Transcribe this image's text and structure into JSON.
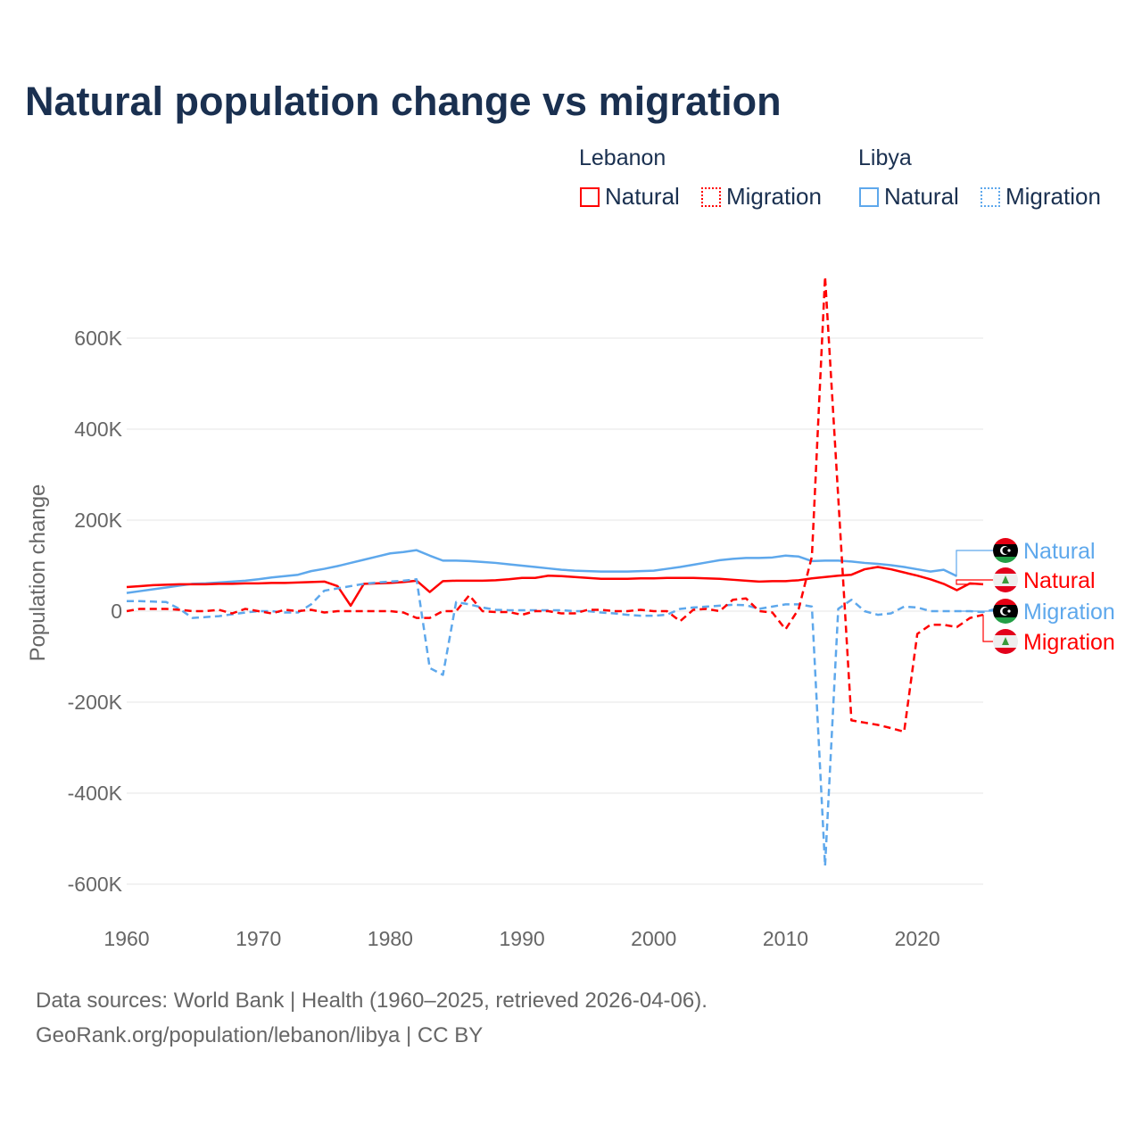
{
  "chart_data": {
    "type": "line",
    "title": "Natural population change vs migration",
    "xlabel": "",
    "ylabel": "Population change",
    "xlim": [
      1960,
      2025
    ],
    "ylim": [
      -650000,
      740000
    ],
    "grid": true,
    "x_ticks": [
      1960,
      1970,
      1980,
      1990,
      2000,
      2010,
      2020
    ],
    "x_tick_labels": [
      "1960",
      "1970",
      "1980",
      "1990",
      "2000",
      "2010",
      "2020"
    ],
    "y_ticks": [
      -600000,
      -400000,
      -200000,
      0,
      200000,
      400000,
      600000
    ],
    "y_tick_labels": [
      "-600K",
      "-400K",
      "-200K",
      "0",
      "200K",
      "400K",
      "600K"
    ],
    "legend": {
      "placement": "top-right",
      "groups": [
        {
          "name": "Lebanon",
          "items": [
            "Natural",
            "Migration"
          ]
        },
        {
          "name": "Libya",
          "items": [
            "Natural",
            "Migration"
          ]
        }
      ]
    },
    "series": [
      {
        "name": "Natural",
        "country": "Libya",
        "style": "solid",
        "color": "#5ea8ec",
        "end_label": "Natural",
        "start_year": 1960,
        "values_k": [
          40,
          44,
          48,
          52,
          56,
          60,
          61,
          63,
          65,
          67,
          70,
          74,
          77,
          80,
          88,
          93,
          99,
          106,
          113,
          120,
          127,
          130,
          134,
          122,
          111,
          111,
          110,
          108,
          106,
          103,
          100,
          97,
          94,
          91,
          89,
          88,
          87,
          87,
          87,
          88,
          89,
          93,
          97,
          102,
          107,
          112,
          115,
          117,
          117,
          118,
          122,
          120,
          110,
          111,
          111,
          109,
          106,
          104,
          101,
          97,
          92,
          87,
          91,
          77
        ]
      },
      {
        "name": "Natural",
        "country": "Lebanon",
        "style": "solid",
        "color": "#ff0000",
        "end_label": "Natural",
        "start_year": 1960,
        "values_k": [
          53,
          55,
          57,
          58,
          59,
          59,
          59,
          60,
          60,
          61,
          61,
          62,
          62,
          63,
          64,
          65,
          55,
          12,
          60,
          61,
          62,
          64,
          67,
          42,
          66,
          67,
          67,
          67,
          68,
          70,
          73,
          73,
          78,
          77,
          75,
          73,
          71,
          71,
          71,
          72,
          72,
          73,
          73,
          73,
          72,
          71,
          69,
          67,
          65,
          66,
          66,
          68,
          72,
          75,
          78,
          80,
          92,
          97,
          92,
          85,
          78,
          70,
          60,
          46,
          61,
          59
        ]
      },
      {
        "name": "Migration",
        "country": "Libya",
        "style": "dashed",
        "color": "#5ea8ec",
        "end_label": "Migration",
        "start_year": 1960,
        "values_k": [
          22,
          22,
          21,
          20,
          5,
          -15,
          -13,
          -11,
          -7,
          -3,
          0,
          0,
          -3,
          -3,
          15,
          45,
          50,
          55,
          60,
          63,
          65,
          67,
          70,
          -125,
          -140,
          20,
          15,
          8,
          3,
          2,
          2,
          2,
          2,
          2,
          0,
          0,
          -3,
          -5,
          -8,
          -10,
          -10,
          -8,
          5,
          8,
          10,
          12,
          14,
          13,
          5,
          10,
          15,
          15,
          10,
          -560,
          5,
          25,
          0,
          -8,
          -5,
          10,
          8,
          0,
          0,
          0,
          0,
          -2,
          5,
          0
        ]
      },
      {
        "name": "Migration",
        "country": "Lebanon",
        "style": "dashed",
        "color": "#ff0000",
        "end_label": "Migration",
        "start_year": 1960,
        "values_k": [
          0,
          5,
          5,
          5,
          3,
          0,
          0,
          3,
          -5,
          5,
          0,
          -5,
          3,
          0,
          3,
          -3,
          0,
          0,
          0,
          0,
          0,
          -3,
          -15,
          -15,
          0,
          0,
          35,
          0,
          -2,
          -2,
          -8,
          0,
          0,
          -5,
          -5,
          3,
          3,
          0,
          0,
          3,
          0,
          0,
          -22,
          3,
          5,
          0,
          25,
          28,
          0,
          -3,
          -40,
          5,
          120,
          735,
          250,
          -240,
          -245,
          -250,
          -257,
          -265,
          -50,
          -30,
          -30,
          -35,
          -15,
          -8
        ]
      }
    ]
  },
  "colors": {
    "lebanon": "#ff0000",
    "libya": "#5ea8ec",
    "title": "#1a3050"
  },
  "footer": {
    "line1": "Data sources: World Bank | Health (1960–2025, retrieved 2026-04-06).",
    "line2": "GeoRank.org/population/lebanon/libya | CC BY"
  }
}
